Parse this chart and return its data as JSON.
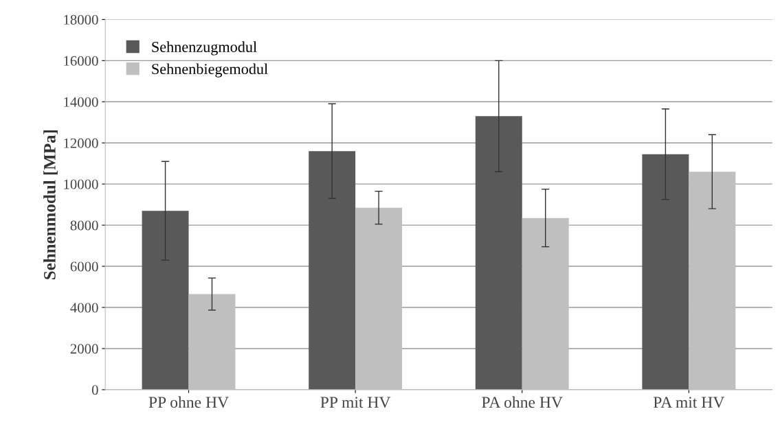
{
  "chart_data": {
    "type": "bar",
    "ylabel": "Sehnenmodul [MPa]",
    "categories": [
      "PP ohne HV",
      "PP mit HV",
      "PA ohne HV",
      "PA mit HV"
    ],
    "series": [
      {
        "name": "Sehnenzugmodul",
        "color": "#595959",
        "values": [
          8700,
          11600,
          13300,
          11450
        ],
        "errors": [
          2400,
          2300,
          2700,
          2200
        ]
      },
      {
        "name": "Sehnenbiegemodul",
        "color": "#bfbfbf",
        "values": [
          4650,
          8850,
          8350,
          10600
        ],
        "errors": [
          780,
          800,
          1400,
          1800
        ]
      }
    ],
    "ylim": [
      0,
      18000
    ],
    "yticks": [
      0,
      2000,
      4000,
      6000,
      8000,
      10000,
      12000,
      14000,
      16000,
      18000
    ],
    "grid": "y",
    "legend": "top left"
  }
}
